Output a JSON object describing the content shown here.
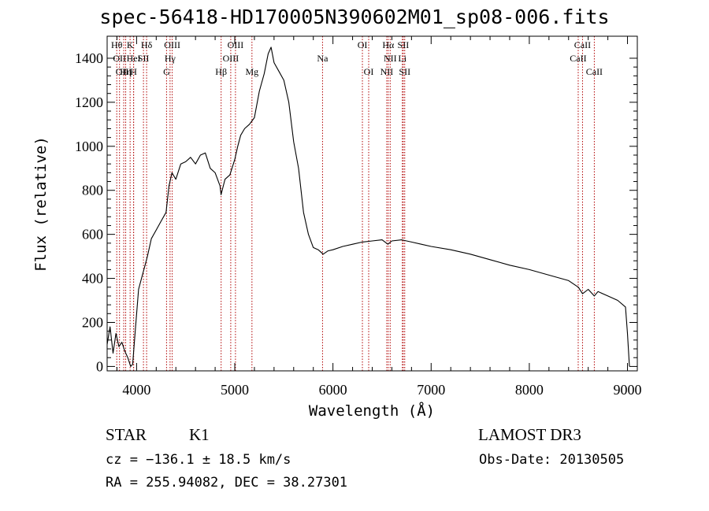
{
  "title": "spec-56418-HD170005N390602M01_sp08-006.fits",
  "info": {
    "class": "STAR",
    "subclass": "K1",
    "survey": "LAMOST DR3",
    "cz": "cz = −136.1 ± 18.5 km/s",
    "obs_date": "Obs-Date: 20130505",
    "radec": "RA = 255.94082, DEC =  38.27301"
  },
  "chart_data": {
    "type": "line",
    "title": "spec-56418-HD170005N390602M01_sp08-006.fits",
    "xlabel": "Wavelength (Å)",
    "ylabel": "Flux (relative)",
    "xlim": [
      3700,
      9100
    ],
    "ylim": [
      -20,
      1500
    ],
    "xticks": [
      4000,
      5000,
      6000,
      7000,
      8000,
      9000
    ],
    "yticks": [
      0,
      200,
      400,
      600,
      800,
      1000,
      1200,
      1400
    ],
    "grid": false,
    "series": [
      {
        "color": "#000000",
        "x": [
          3700,
          3730,
          3760,
          3790,
          3820,
          3850,
          3880,
          3910,
          3940,
          3960,
          3990,
          4020,
          4050,
          4080,
          4110,
          4150,
          4200,
          4250,
          4300,
          4330,
          4360,
          4400,
          4450,
          4500,
          4550,
          4600,
          4650,
          4700,
          4750,
          4800,
          4850,
          4860,
          4900,
          4950,
          5000,
          5030,
          5060,
          5100,
          5150,
          5200,
          5250,
          5300,
          5340,
          5370,
          5400,
          5450,
          5500,
          5550,
          5600,
          5650,
          5700,
          5750,
          5800,
          5850,
          5900,
          5950,
          6000,
          6100,
          6200,
          6300,
          6400,
          6500,
          6560,
          6600,
          6700,
          6800,
          6900,
          7000,
          7200,
          7400,
          7600,
          7800,
          8000,
          8200,
          8400,
          8500,
          8542,
          8600,
          8662,
          8700,
          8800,
          8900,
          8980,
          9000,
          9020
        ],
        "y": [
          100,
          180,
          60,
          150,
          90,
          110,
          70,
          40,
          0,
          10,
          180,
          350,
          400,
          450,
          500,
          580,
          620,
          660,
          700,
          820,
          880,
          850,
          920,
          930,
          950,
          920,
          960,
          970,
          900,
          880,
          820,
          780,
          850,
          870,
          940,
          1000,
          1050,
          1080,
          1100,
          1130,
          1250,
          1330,
          1420,
          1450,
          1380,
          1340,
          1300,
          1200,
          1020,
          900,
          700,
          600,
          540,
          530,
          510,
          525,
          530,
          545,
          555,
          565,
          570,
          575,
          555,
          570,
          575,
          565,
          555,
          545,
          530,
          510,
          485,
          460,
          440,
          415,
          390,
          360,
          330,
          350,
          320,
          340,
          320,
          300,
          270,
          150,
          0
        ]
      }
    ],
    "line_marks": [
      {
        "x": 3798,
        "label": "Hθ",
        "row": 0
      },
      {
        "x": 3826,
        "label": "OII",
        "row": 1
      },
      {
        "x": 3869,
        "label": "OIII",
        "row": 2
      },
      {
        "x": 3889,
        "label": "Hη",
        "row": 2
      },
      {
        "x": 3934,
        "label": "K",
        "row": 0
      },
      {
        "x": 3969,
        "label": "H",
        "row": 2
      },
      {
        "x": 3970,
        "label": "HeI",
        "row": 1
      },
      {
        "x": 4070,
        "label": "SII",
        "row": 1
      },
      {
        "x": 4102,
        "label": "Hδ",
        "row": 0
      },
      {
        "x": 4305,
        "label": "G",
        "row": 2
      },
      {
        "x": 4341,
        "label": "Hγ",
        "row": 1
      },
      {
        "x": 4363,
        "label": "OIII",
        "row": 0
      },
      {
        "x": 4861,
        "label": "Hβ",
        "row": 2
      },
      {
        "x": 4959,
        "label": "OIII",
        "row": 1
      },
      {
        "x": 5007,
        "label": "OIII",
        "row": 0
      },
      {
        "x": 5175,
        "label": "Mg",
        "row": 2
      },
      {
        "x": 5894,
        "label": "Na",
        "row": 1
      },
      {
        "x": 6300,
        "label": "OI",
        "row": 0
      },
      {
        "x": 6364,
        "label": "OI",
        "row": 2
      },
      {
        "x": 6548,
        "label": "NII",
        "row": 2
      },
      {
        "x": 6563,
        "label": "Hα",
        "row": 0
      },
      {
        "x": 6583,
        "label": "NII",
        "row": 1
      },
      {
        "x": 6707,
        "label": "Li",
        "row": 1
      },
      {
        "x": 6716,
        "label": "SII",
        "row": 0
      },
      {
        "x": 6731,
        "label": "SII",
        "row": 2
      },
      {
        "x": 8498,
        "label": "CaII",
        "row": 1
      },
      {
        "x": 8542,
        "label": "CaII",
        "row": 0
      },
      {
        "x": 8662,
        "label": "CaII",
        "row": 2
      }
    ],
    "line_mark_color": "#b00000"
  }
}
